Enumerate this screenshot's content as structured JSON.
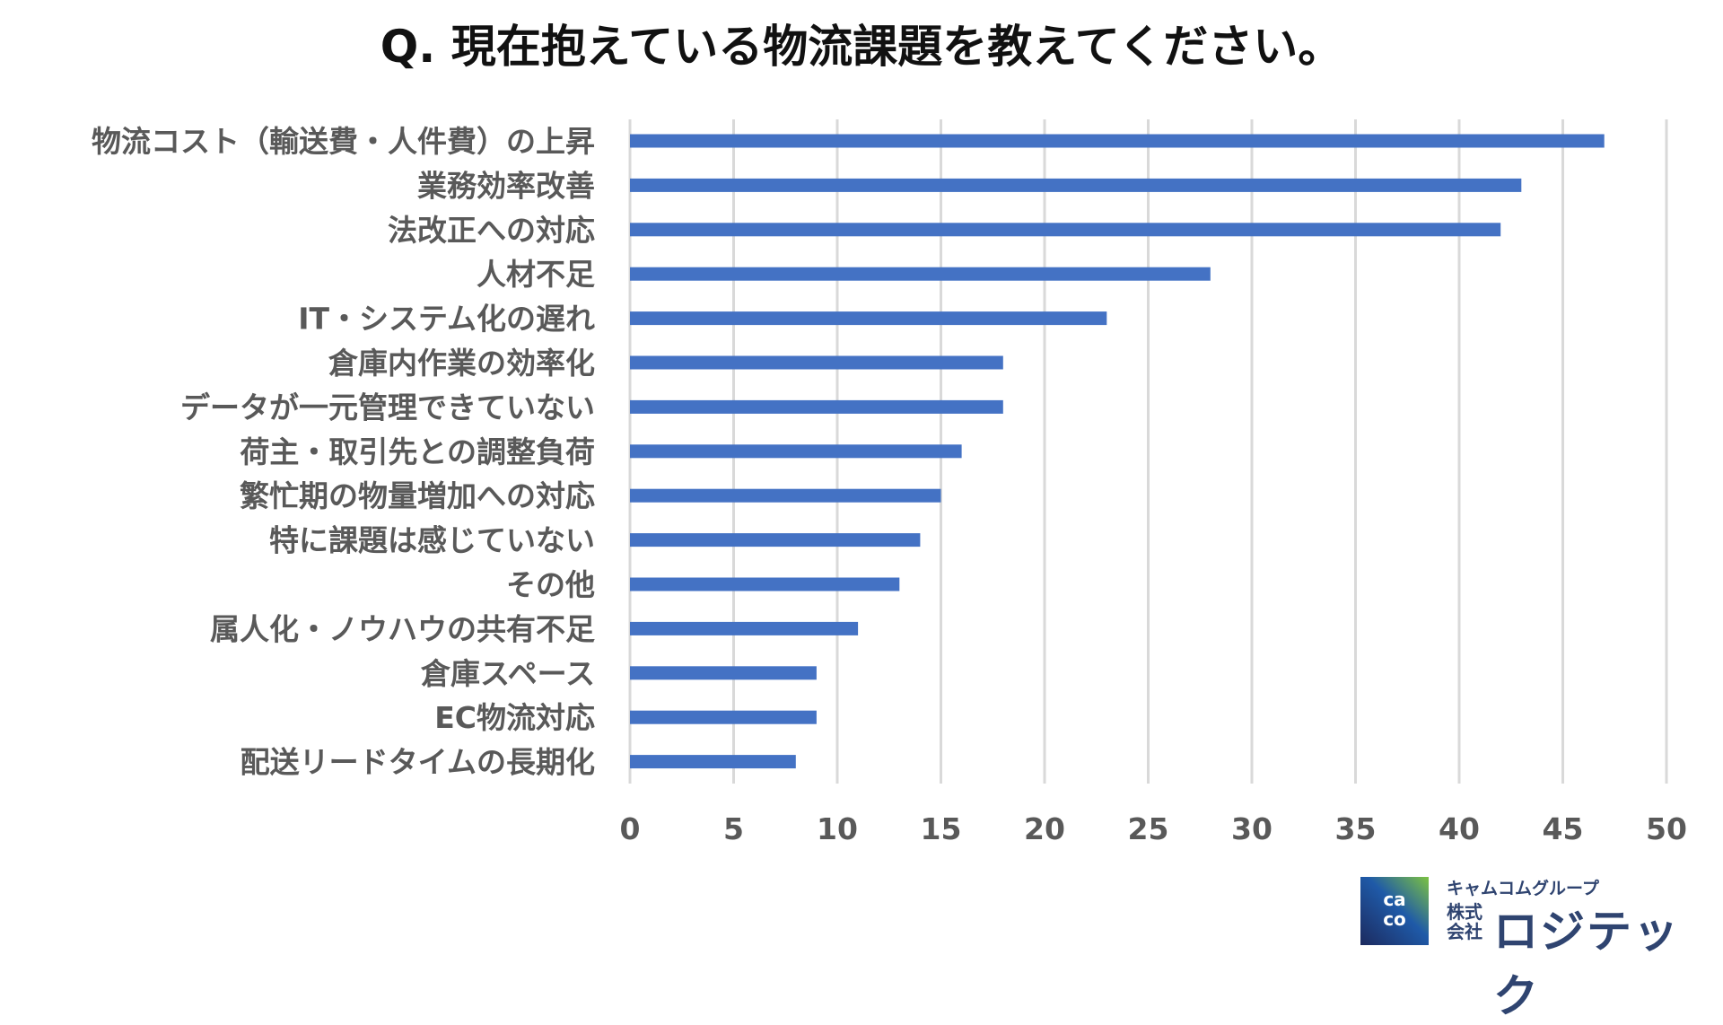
{
  "title": "Q.  現在抱えている物流課題を教えてください。",
  "chart_data": {
    "type": "bar",
    "orientation": "horizontal",
    "title": "Q.  現在抱えている物流課題を教えてください。",
    "categories": [
      "物流コスト（輸送費・人件費）の上昇",
      "業務効率改善",
      "法改正への対応",
      "人材不足",
      "IT・システム化の遅れ",
      "倉庫内作業の効率化",
      "データが一元管理できていない",
      "荷主・取引先との調整負荷",
      "繁忙期の物量増加への対応",
      "特に課題は感じていない",
      "その他",
      "属人化・ノウハウの共有不足",
      "倉庫スペース",
      "EC物流対応",
      "配送リードタイムの長期化"
    ],
    "values": [
      47,
      43,
      42,
      28,
      23,
      18,
      18,
      16,
      15,
      14,
      13,
      11,
      9,
      9,
      8
    ],
    "xlim": [
      0,
      50
    ],
    "xticks": [
      "0",
      "5",
      "10",
      "15",
      "20",
      "25",
      "30",
      "35",
      "40",
      "45",
      "50"
    ],
    "grid": "vertical",
    "bar_color": "#4472C4",
    "legend": "none"
  },
  "logo": {
    "mark": "cam com",
    "group": "キャムコムグループ",
    "kk": "株式会社",
    "name": "ロジテック"
  }
}
